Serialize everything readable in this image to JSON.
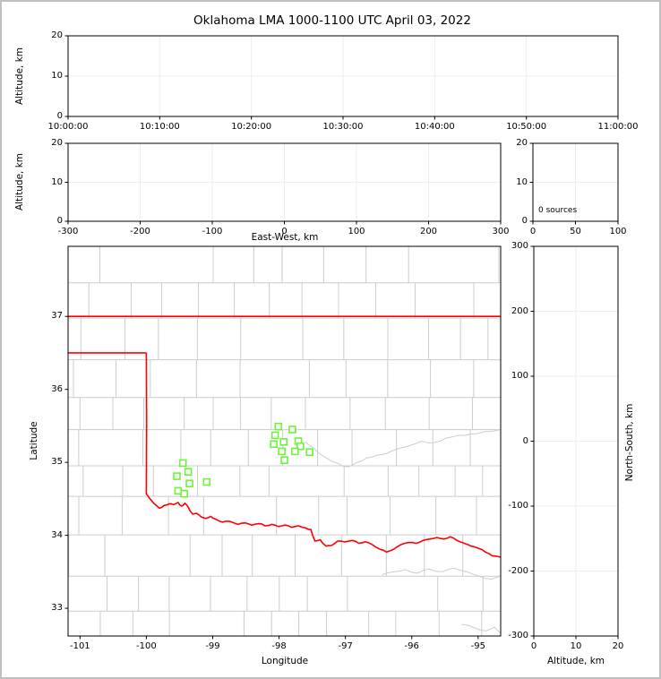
{
  "title": "Oklahoma LMA 1000-1100 UTC April 03, 2022",
  "colors": {
    "state_border": "#ff0000",
    "county_line": "#cccccc",
    "river_line": "#cccccc",
    "station_marker": "#6df23e",
    "grid_line": "#ededed",
    "axis": "#000000",
    "frame": "#c0c0c0"
  },
  "chart_data": {
    "type": "scatter",
    "title": "Oklahoma LMA 1000-1100 UTC April 03, 2022",
    "note": "LMA source overview plot: all source panels are empty (0 sources); green squares on the map are LMA station locations; red line is the Oklahoma state border; light gray lines are county borders.",
    "panels": {
      "time_height": {
        "ylabel": "Altitude, km",
        "xticks": [
          "10:00:00",
          "10:10:00",
          "10:20:00",
          "10:30:00",
          "10:40:00",
          "10:50:00",
          "11:00:00"
        ],
        "yticks": [
          0,
          10,
          20
        ],
        "ylim": [
          0,
          20
        ],
        "grid": true,
        "points": []
      },
      "ew_height": {
        "xlabel": "East-West, km",
        "ylabel": "Altitude, km",
        "xticks": [
          -300,
          -200,
          -100,
          0,
          100,
          200,
          300
        ],
        "xlim": [
          -300,
          300
        ],
        "yticks": [
          0,
          10,
          20
        ],
        "ylim": [
          0,
          20
        ],
        "grid": true,
        "points": []
      },
      "altitude_histogram": {
        "annotation": "0 sources",
        "xticks": [
          0,
          50,
          100
        ],
        "xlim": [
          0,
          100
        ],
        "yticks": [
          0,
          10,
          20
        ],
        "ylim": [
          0,
          20
        ],
        "grid": true,
        "points": []
      },
      "plan_view": {
        "xlabel": "Longitude",
        "ylabel": "Latitude",
        "xticks": [
          -101,
          -100,
          -99,
          -98,
          -97,
          -96,
          -95
        ],
        "xlim": [
          -101.18,
          -94.66
        ],
        "yticks": [
          33,
          34,
          35,
          36,
          37
        ],
        "ylim": [
          32.62,
          37.96
        ],
        "grid": false,
        "stations_lon_lat": [
          [
            -98.01,
            35.49
          ],
          [
            -97.8,
            35.45
          ],
          [
            -98.06,
            35.37
          ],
          [
            -97.93,
            35.28
          ],
          [
            -98.08,
            35.25
          ],
          [
            -97.71,
            35.29
          ],
          [
            -97.68,
            35.22
          ],
          [
            -97.96,
            35.15
          ],
          [
            -97.76,
            35.15
          ],
          [
            -97.54,
            35.14
          ],
          [
            -97.92,
            35.03
          ],
          [
            -99.45,
            34.99
          ],
          [
            -99.37,
            34.87
          ],
          [
            -99.54,
            34.81
          ],
          [
            -99.09,
            34.73
          ],
          [
            -99.35,
            34.71
          ],
          [
            -99.52,
            34.61
          ],
          [
            -99.43,
            34.57
          ]
        ],
        "state_border": {
          "north_lat37": [
            [
              -101.18,
              37.0
            ],
            [
              -94.66,
              37.0
            ]
          ],
          "panhandle_lat36_5": [
            [
              -101.18,
              36.5
            ],
            [
              -100.0,
              36.5
            ]
          ],
          "west_and_red_river": [
            [
              -100.0,
              36.5
            ],
            [
              -100.0,
              34.57
            ],
            [
              -99.89,
              34.44
            ],
            [
              -99.8,
              34.37
            ],
            [
              -99.73,
              34.41
            ],
            [
              -99.66,
              34.43
            ],
            [
              -99.59,
              34.42
            ],
            [
              -99.52,
              34.45
            ],
            [
              -99.47,
              34.4
            ],
            [
              -99.42,
              34.44
            ],
            [
              -99.36,
              34.37
            ],
            [
              -99.3,
              34.29
            ],
            [
              -99.24,
              34.3
            ],
            [
              -99.17,
              34.25
            ],
            [
              -99.1,
              34.23
            ],
            [
              -99.03,
              34.26
            ],
            [
              -98.95,
              34.22
            ],
            [
              -98.85,
              34.18
            ],
            [
              -98.74,
              34.19
            ],
            [
              -98.62,
              34.15
            ],
            [
              -98.51,
              34.17
            ],
            [
              -98.41,
              34.14
            ],
            [
              -98.31,
              34.16
            ],
            [
              -98.21,
              34.13
            ],
            [
              -98.11,
              34.15
            ],
            [
              -98.01,
              34.12
            ],
            [
              -97.91,
              34.14
            ],
            [
              -97.81,
              34.11
            ],
            [
              -97.71,
              34.13
            ],
            [
              -97.6,
              34.1
            ],
            [
              -97.52,
              34.08
            ],
            [
              -97.46,
              33.92
            ],
            [
              -97.38,
              33.94
            ],
            [
              -97.29,
              33.85
            ],
            [
              -97.21,
              33.86
            ],
            [
              -97.12,
              33.92
            ],
            [
              -97.01,
              33.91
            ],
            [
              -96.9,
              33.93
            ],
            [
              -96.8,
              33.89
            ],
            [
              -96.7,
              33.91
            ],
            [
              -96.59,
              33.87
            ],
            [
              -96.48,
              33.81
            ],
            [
              -96.38,
              33.77
            ],
            [
              -96.27,
              33.81
            ],
            [
              -96.17,
              33.87
            ],
            [
              -96.05,
              33.9
            ],
            [
              -95.94,
              33.89
            ],
            [
              -95.83,
              33.93
            ],
            [
              -95.72,
              33.95
            ],
            [
              -95.62,
              33.97
            ],
            [
              -95.52,
              33.95
            ],
            [
              -95.42,
              33.98
            ],
            [
              -95.32,
              33.93
            ],
            [
              -95.21,
              33.89
            ],
            [
              -95.1,
              33.85
            ],
            [
              -94.99,
              33.82
            ],
            [
              -94.89,
              33.77
            ],
            [
              -94.79,
              33.72
            ],
            [
              -94.66,
              33.7
            ]
          ]
        },
        "rivers_gray": [
          [
            [
              -97.6,
              35.28
            ],
            [
              -97.48,
              35.2
            ],
            [
              -97.36,
              35.1
            ],
            [
              -97.22,
              35.02
            ],
            [
              -97.08,
              34.97
            ],
            [
              -96.95,
              34.94
            ],
            [
              -96.82,
              35.0
            ],
            [
              -96.68,
              35.06
            ],
            [
              -96.52,
              35.1
            ],
            [
              -96.36,
              35.13
            ],
            [
              -96.2,
              35.19
            ],
            [
              -96.03,
              35.23
            ],
            [
              -95.85,
              35.29
            ],
            [
              -95.67,
              35.27
            ],
            [
              -95.49,
              35.33
            ],
            [
              -95.3,
              35.37
            ],
            [
              -95.1,
              35.39
            ],
            [
              -94.9,
              35.42
            ],
            [
              -94.66,
              35.45
            ]
          ],
          [
            [
              -96.45,
              33.46
            ],
            [
              -96.28,
              33.5
            ],
            [
              -96.1,
              33.53
            ],
            [
              -95.92,
              33.48
            ],
            [
              -95.74,
              33.54
            ],
            [
              -95.55,
              33.5
            ],
            [
              -95.36,
              33.55
            ],
            [
              -95.17,
              33.5
            ],
            [
              -94.98,
              33.44
            ],
            [
              -94.8,
              33.4
            ],
            [
              -94.66,
              33.45
            ]
          ],
          [
            [
              -95.25,
              32.78
            ],
            [
              -95.05,
              32.73
            ],
            [
              -94.88,
              32.69
            ],
            [
              -94.75,
              32.74
            ],
            [
              -94.66,
              32.66
            ]
          ]
        ]
      },
      "ns_height": {
        "xlabel": "Altitude, km",
        "ylabel": "North-South, km",
        "xticks": [
          0,
          10,
          20
        ],
        "xlim": [
          0,
          20
        ],
        "yticks": [
          -300,
          -200,
          -100,
          0,
          100,
          200,
          300
        ],
        "ylim": [
          -300,
          300
        ],
        "grid": true,
        "points": []
      }
    }
  }
}
